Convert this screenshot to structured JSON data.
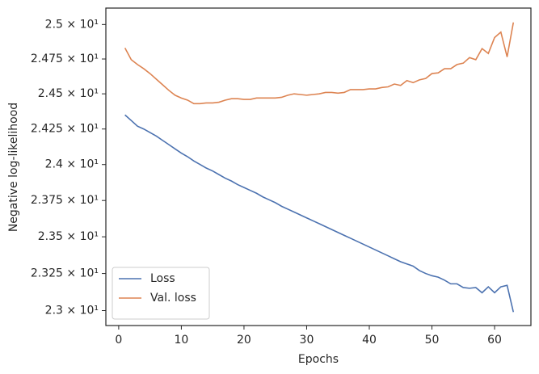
{
  "chart_data": {
    "type": "line",
    "x_label": "Epochs",
    "y_label": "Negative log-likelihood",
    "x": [
      1,
      2,
      3,
      4,
      5,
      6,
      7,
      8,
      9,
      10,
      11,
      12,
      13,
      14,
      15,
      16,
      17,
      18,
      19,
      20,
      21,
      22,
      23,
      24,
      25,
      26,
      27,
      28,
      29,
      30,
      31,
      32,
      33,
      34,
      35,
      36,
      37,
      38,
      39,
      40,
      41,
      42,
      43,
      44,
      45,
      46,
      47,
      48,
      49,
      50,
      51,
      52,
      53,
      54,
      55,
      56,
      57,
      58,
      59,
      60,
      61,
      62,
      63
    ],
    "series": [
      {
        "name": "Loss",
        "color": "#4c72b0",
        "values": [
          24.35,
          24.31,
          24.27,
          24.25,
          24.225,
          24.2,
          24.17,
          24.14,
          24.11,
          24.08,
          24.055,
          24.025,
          24.0,
          23.975,
          23.955,
          23.93,
          23.905,
          23.885,
          23.86,
          23.84,
          23.82,
          23.8,
          23.775,
          23.755,
          23.735,
          23.71,
          23.69,
          23.67,
          23.65,
          23.63,
          23.61,
          23.59,
          23.57,
          23.55,
          23.53,
          23.51,
          23.49,
          23.47,
          23.45,
          23.43,
          23.41,
          23.39,
          23.37,
          23.35,
          23.33,
          23.315,
          23.3,
          23.27,
          23.25,
          23.235,
          23.225,
          23.205,
          23.18,
          23.18,
          23.155,
          23.15,
          23.155,
          23.12,
          23.16,
          23.12,
          23.16,
          23.17,
          22.99
        ]
      },
      {
        "name": "Val. loss",
        "color": "#dd8452",
        "values": [
          24.83,
          24.745,
          24.71,
          24.68,
          24.645,
          24.605,
          24.565,
          24.525,
          24.49,
          24.47,
          24.455,
          24.43,
          24.43,
          24.435,
          24.435,
          24.44,
          24.455,
          24.465,
          24.465,
          24.46,
          24.46,
          24.47,
          24.47,
          24.47,
          24.47,
          24.475,
          24.49,
          24.5,
          24.495,
          24.49,
          24.495,
          24.5,
          24.51,
          24.51,
          24.505,
          24.51,
          24.53,
          24.53,
          24.53,
          24.535,
          24.535,
          24.545,
          24.55,
          24.57,
          24.56,
          24.595,
          24.58,
          24.6,
          24.61,
          24.645,
          24.65,
          24.68,
          24.68,
          24.71,
          24.72,
          24.76,
          24.745,
          24.825,
          24.79,
          24.905,
          24.945,
          24.765,
          25.015
        ]
      }
    ],
    "xlim": [
      -2.05,
      65.8
    ],
    "xticks": [
      0,
      10,
      20,
      30,
      40,
      50,
      60
    ],
    "ylim": [
      22.9,
      25.12
    ],
    "y_log": true,
    "yticks": [
      {
        "value": 23,
        "label": "2.3 × 10¹"
      },
      {
        "value": 23.25,
        "label": "2.325 × 10¹"
      },
      {
        "value": 23.5,
        "label": "2.35 × 10¹"
      },
      {
        "value": 23.75,
        "label": "2.375 × 10¹"
      },
      {
        "value": 24,
        "label": "2.4 × 10¹"
      },
      {
        "value": 24.25,
        "label": "2.425 × 10¹"
      },
      {
        "value": 24.5,
        "label": "2.45 × 10¹"
      },
      {
        "value": 24.75,
        "label": "2.475 × 10¹"
      },
      {
        "value": 25,
        "label": "2.5 × 10¹"
      }
    ],
    "grid": false,
    "legend": "lower left"
  }
}
